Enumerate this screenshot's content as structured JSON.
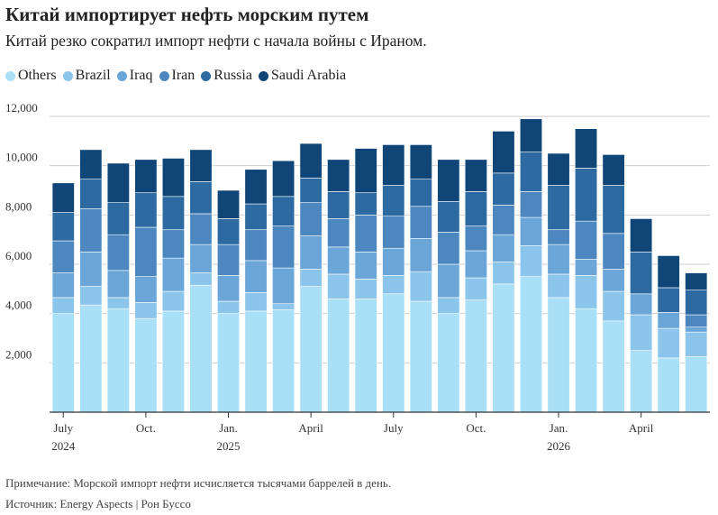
{
  "title": "Китай импортирует нефть морским путем",
  "subtitle": "Китай резко сократил импорт нефти с начала войны с Ираном.",
  "note": "Примечание: Морской импорт нефти исчисляется тысячами баррелей в день.",
  "source": "Источник: Energy Aspects | Рон Буссо",
  "chart_data": {
    "type": "bar",
    "stacked": true,
    "title": "Китай импортирует нефть морским путем",
    "subtitle": "Китай резко сократил импорт нефти с начала войны с Ираном.",
    "xlabel": "",
    "ylabel": "",
    "ylim": [
      0,
      12000
    ],
    "yticks": [
      2000,
      4000,
      6000,
      8000,
      10000,
      12000
    ],
    "ytick_labels": [
      "2,000",
      "4,000",
      "6,000",
      "8,000",
      "10,000",
      "12,000"
    ],
    "grid": true,
    "legend_position": "top-left",
    "categories": [
      "2024-07",
      "2024-08",
      "2024-09",
      "2024-10",
      "2024-11",
      "2024-12",
      "2025-01",
      "2025-02",
      "2025-03",
      "2025-04",
      "2025-05",
      "2025-06",
      "2025-07",
      "2025-08",
      "2025-09",
      "2025-10",
      "2025-11",
      "2025-12",
      "2026-01",
      "2026-02",
      "2026-03",
      "2026-04",
      "2026-05",
      "2026-06"
    ],
    "x_tick_labels": [
      {
        "category_index": 0,
        "line1": "July",
        "line2": "2024"
      },
      {
        "category_index": 3,
        "line1": "Oct.",
        "line2": ""
      },
      {
        "category_index": 6,
        "line1": "Jan.",
        "line2": "2025"
      },
      {
        "category_index": 9,
        "line1": "April",
        "line2": ""
      },
      {
        "category_index": 12,
        "line1": "July",
        "line2": ""
      },
      {
        "category_index": 15,
        "line1": "Oct.",
        "line2": ""
      },
      {
        "category_index": 18,
        "line1": "Jan.",
        "line2": "2026"
      },
      {
        "category_index": 21,
        "line1": "April",
        "line2": ""
      }
    ],
    "series": [
      {
        "name": "Others",
        "color": "#a9dff7",
        "values": [
          4000,
          4350,
          4200,
          3800,
          4100,
          5150,
          4000,
          4100,
          4150,
          5100,
          4600,
          4600,
          4800,
          4500,
          4000,
          4550,
          5200,
          5500,
          4650,
          4200,
          3700,
          2500,
          2200,
          2250
        ]
      },
      {
        "name": "Brazil",
        "color": "#8cc5ec",
        "values": [
          650,
          750,
          450,
          650,
          800,
          500,
          500,
          750,
          250,
          700,
          1000,
          800,
          750,
          1200,
          650,
          900,
          900,
          1250,
          950,
          1350,
          1200,
          1450,
          1200,
          1000
        ]
      },
      {
        "name": "Iraq",
        "color": "#6aa6d8",
        "values": [
          1000,
          1400,
          1100,
          1050,
          1350,
          1150,
          1050,
          1300,
          1450,
          1350,
          1100,
          1100,
          1100,
          1350,
          1350,
          1100,
          1100,
          1150,
          1200,
          650,
          900,
          850,
          650,
          200
        ]
      },
      {
        "name": "Iran",
        "color": "#4c88bf",
        "values": [
          1300,
          1750,
          1450,
          2000,
          1150,
          1250,
          1250,
          1250,
          1700,
          1350,
          1150,
          1500,
          1300,
          1300,
          1300,
          1000,
          1200,
          1050,
          600,
          1550,
          1450,
          0,
          0,
          500
        ]
      },
      {
        "name": "Russia",
        "color": "#2c6aa1",
        "values": [
          1150,
          1200,
          1300,
          1400,
          1350,
          1300,
          1050,
          1050,
          1200,
          1000,
          1100,
          900,
          1250,
          1100,
          1250,
          1400,
          1300,
          1600,
          1800,
          2150,
          1950,
          1700,
          1000,
          1000
        ]
      },
      {
        "name": "Saudi Arabia",
        "color": "#0f4577",
        "values": [
          1200,
          1200,
          1600,
          1350,
          1550,
          1300,
          1150,
          1400,
          1450,
          1400,
          1300,
          1800,
          1650,
          1400,
          1700,
          1300,
          1700,
          1350,
          1300,
          1600,
          1250,
          1350,
          1300,
          700
        ]
      }
    ]
  }
}
